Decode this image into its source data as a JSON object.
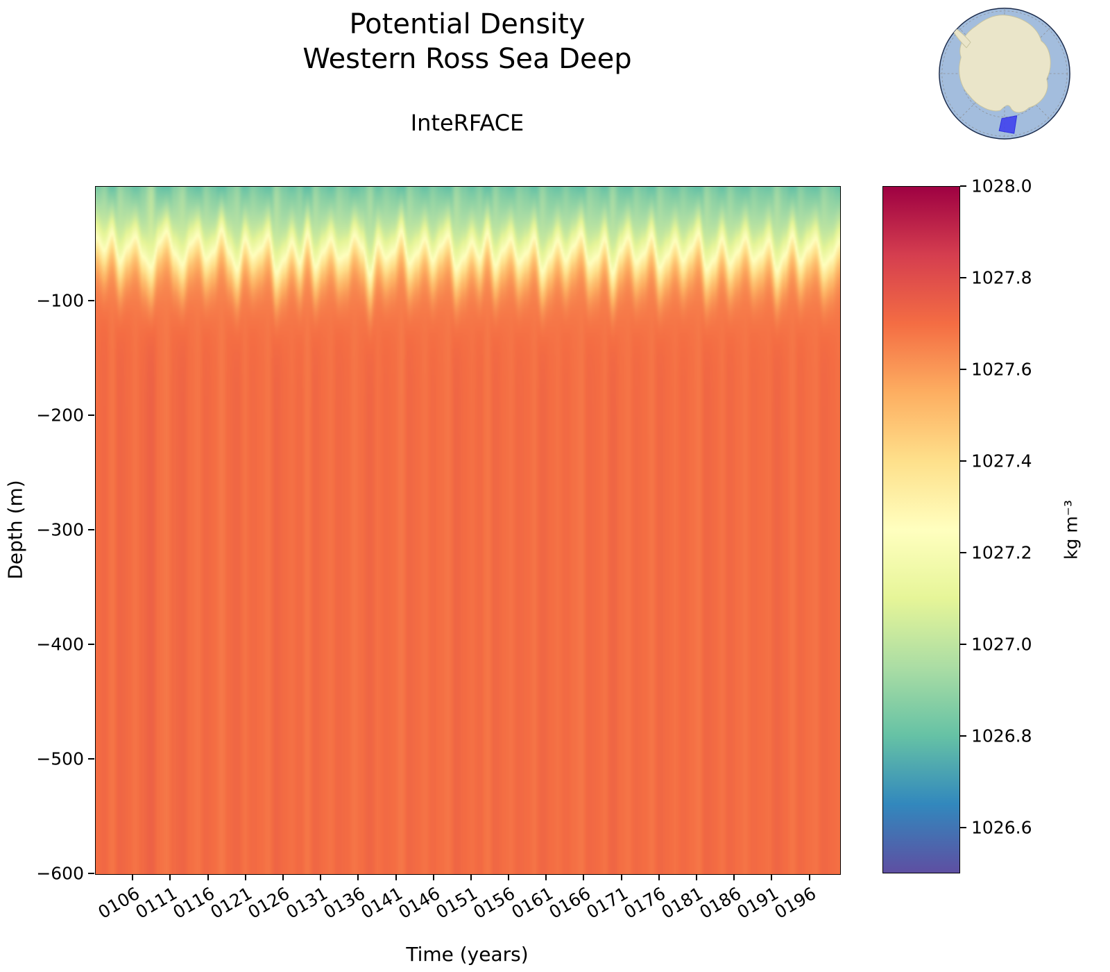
{
  "figure": {
    "title_line1": "Potential Density",
    "title_line2": "Western Ross Sea Deep",
    "subtitle": "InteRFACE"
  },
  "chart_data": {
    "type": "heatmap",
    "title": "Potential Density\nWestern Ross Sea Deep",
    "title_line1": "Potential Density",
    "title_line2": "Western Ross Sea Deep",
    "subtitle": "InteRFACE",
    "xlabel": "Time (years)",
    "ylabel": "Depth (m)",
    "colorbar_label": "kg m⁻³",
    "colormap": "Spectral_r",
    "clim": [
      1026.5,
      1028.0
    ],
    "x_range_years": [
      101,
      200
    ],
    "x_tick_years": [
      106,
      111,
      116,
      121,
      126,
      131,
      136,
      141,
      146,
      151,
      156,
      161,
      166,
      171,
      176,
      181,
      186,
      191,
      196
    ],
    "x_tick_labels": [
      "0106",
      "0111",
      "0116",
      "0121",
      "0126",
      "0131",
      "0136",
      "0141",
      "0146",
      "0151",
      "0156",
      "0161",
      "0166",
      "0171",
      "0176",
      "0181",
      "0186",
      "0191",
      "0196"
    ],
    "y_range_m": [
      0,
      -600
    ],
    "y_tick_values": [
      -100,
      -200,
      -300,
      -400,
      -500,
      -600
    ],
    "y_tick_labels": [
      "−100",
      "−200",
      "−300",
      "−400",
      "−500",
      "−600"
    ],
    "colorbar_tick_values": [
      1026.6,
      1026.8,
      1027.0,
      1027.2,
      1027.4,
      1027.6,
      1027.8,
      1028.0
    ],
    "colorbar_tick_labels": [
      "1026.6",
      "1026.8",
      "1027.0",
      "1027.2",
      "1027.4",
      "1027.6",
      "1027.8",
      "1028.0"
    ],
    "deep_density_kg_m3": 1027.7,
    "surface_density_by_year": [
      1026.85,
      1026.92,
      1026.78,
      1026.95,
      1026.88,
      1026.8,
      1026.9,
      1027.0,
      1026.82,
      1026.76,
      1026.9,
      1026.96,
      1026.84,
      1026.78,
      1026.92,
      1026.86,
      1026.75,
      1026.88,
      1026.94,
      1026.8,
      1026.9,
      1026.85,
      1026.78,
      1026.96,
      1026.88,
      1026.82,
      1026.9,
      1026.76,
      1026.94,
      1026.86,
      1026.8,
      1026.92,
      1026.88,
      1026.78,
      1026.85,
      1026.95,
      1026.82,
      1026.9,
      1026.86,
      1026.76,
      1026.93,
      1026.87,
      1026.8,
      1026.9,
      1026.84,
      1026.78,
      1026.95,
      1026.88,
      1026.82,
      1026.9,
      1026.77,
      1026.93,
      1026.85,
      1026.8,
      1026.91,
      1026.87,
      1026.79,
      1026.94,
      1026.86,
      1026.81,
      1026.9,
      1026.83,
      1026.77,
      1026.92,
      1026.88,
      1026.8,
      1026.95,
      1026.84,
      1026.79,
      1026.91,
      1026.86,
      1026.78,
      1026.93,
      1026.87,
      1026.81,
      1026.9,
      1026.84,
      1026.77,
      1026.94,
      1026.88,
      1026.8,
      1026.92,
      1026.85,
      1026.79,
      1026.9,
      1026.86,
      1026.82,
      1026.95,
      1026.87,
      1026.78,
      1026.91,
      1026.84,
      1026.8,
      1026.93,
      1026.88,
      1026.82
    ],
    "mixed_layer_depth_m_by_year": [
      45,
      60,
      38,
      72,
      55,
      42,
      65,
      80,
      48,
      36,
      62,
      75,
      50,
      40,
      68,
      58,
      34,
      60,
      78,
      44,
      64,
      55,
      40,
      82,
      66,
      48,
      70,
      38,
      76,
      58,
      44,
      68,
      62,
      40,
      54,
      84,
      48,
      66,
      58,
      36,
      72,
      60,
      44,
      68,
      52,
      40,
      78,
      64,
      48,
      66,
      38,
      74,
      56,
      44,
      70,
      60,
      42,
      80,
      62,
      46,
      68,
      52,
      38,
      72,
      64,
      44,
      82,
      56,
      42,
      70,
      60,
      40,
      76,
      62,
      46,
      68,
      54,
      38,
      78,
      66,
      44,
      72,
      58,
      42,
      68,
      60,
      46,
      80,
      62,
      40,
      70,
      54,
      44,
      74,
      64,
      48
    ]
  },
  "colors": {
    "colormap_stops": [
      "#5e4fa2",
      "#3288bd",
      "#66c2a5",
      "#abdda4",
      "#e6f598",
      "#ffffbf",
      "#fee08b",
      "#fdae61",
      "#f46d43",
      "#d53e4f",
      "#9e0142"
    ],
    "background": "#ffffff",
    "axis": "#000000",
    "inset_ocean": "#a3bddd",
    "inset_land": "#eae5c9",
    "inset_land_edge": "#c8c4a0",
    "inset_grid": "#8a8a8a",
    "inset_outline": "#1a2a4a",
    "inset_highlight": "#3b3bef",
    "inset_highlight_edge": "#1a1adf"
  }
}
